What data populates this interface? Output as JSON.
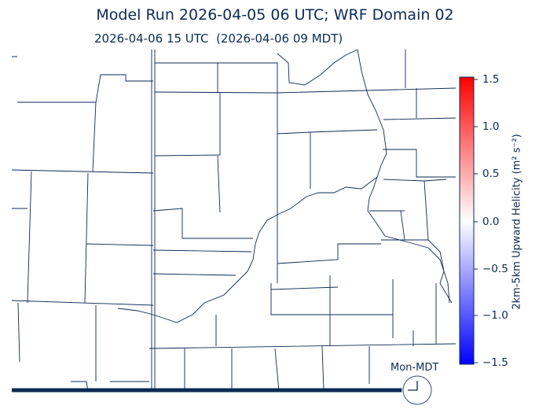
{
  "header": {
    "title": "Model Run 2026-04-05 06 UTC; WRF Domain 02",
    "valid_time": "2026-04-06 15 UTC  (2026-04-06 09 MDT)"
  },
  "colorbar": {
    "label": "2km-5km Upward Helicity (m² s⁻²)",
    "ticks": [
      "1.5",
      "1.0",
      "0.5",
      "0.0",
      "−0.5",
      "−1.0",
      "−1.5"
    ],
    "range": [
      -1.5,
      1.5
    ],
    "colormap": "bwr",
    "color_min": "#0000ff",
    "color_mid": "#ffffff",
    "color_max": "#ff0000"
  },
  "clock": {
    "label": "Mon-MDT",
    "time": "09:00",
    "icon": "clock-icon"
  },
  "timeline": {
    "progress": 0.9
  },
  "colors": {
    "boundary": "#0b2a55"
  }
}
